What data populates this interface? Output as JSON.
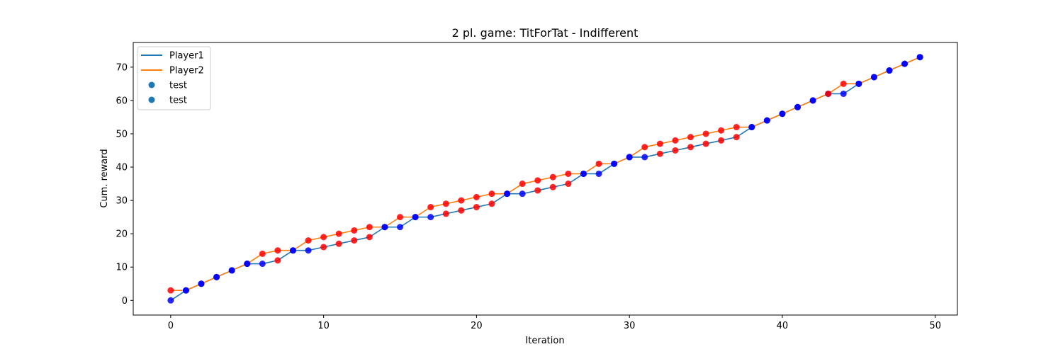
{
  "chart_data": {
    "type": "line",
    "title": "2 pl. game: TitForTat - Indifferent",
    "xlabel": "Iteration",
    "ylabel": "Cum. reward",
    "xlim": [
      -2.45,
      51.45
    ],
    "ylim": [
      -4.4,
      77.4
    ],
    "xticks": [
      0,
      10,
      20,
      30,
      40,
      50
    ],
    "yticks": [
      0,
      10,
      20,
      30,
      40,
      50,
      60,
      70
    ],
    "x": [
      0,
      1,
      2,
      3,
      4,
      5,
      6,
      7,
      8,
      9,
      10,
      11,
      12,
      13,
      14,
      15,
      16,
      17,
      18,
      19,
      20,
      21,
      22,
      23,
      24,
      25,
      26,
      27,
      28,
      29,
      30,
      31,
      32,
      33,
      34,
      35,
      36,
      37,
      38,
      39,
      40,
      41,
      42,
      43,
      44,
      45,
      46,
      47,
      48,
      49
    ],
    "series": [
      {
        "name": "Player1",
        "kind": "line",
        "color": "#1f77b4",
        "values": [
          0,
          3,
          5,
          7,
          9,
          11,
          11,
          12,
          15,
          15,
          16,
          17,
          18,
          19,
          22,
          22,
          25,
          25,
          26,
          27,
          28,
          29,
          32,
          32,
          33,
          34,
          35,
          38,
          38,
          41,
          43,
          43,
          44,
          45,
          46,
          47,
          48,
          49,
          52,
          54,
          56,
          58,
          60,
          62,
          62,
          65,
          67,
          69,
          71,
          73
        ]
      },
      {
        "name": "Player2",
        "kind": "line",
        "color": "#ff7f0e",
        "values": [
          3,
          3,
          5,
          7,
          9,
          11,
          14,
          15,
          15,
          18,
          19,
          20,
          21,
          22,
          22,
          25,
          25,
          28,
          29,
          30,
          31,
          32,
          32,
          35,
          36,
          37,
          38,
          38,
          41,
          41,
          43,
          46,
          47,
          48,
          49,
          50,
          51,
          52,
          52,
          54,
          56,
          58,
          60,
          62,
          65,
          65,
          67,
          69,
          71,
          73
        ]
      },
      {
        "name": "test",
        "kind": "scatter",
        "target": "Player1",
        "legend_color": "#1f77b4",
        "point_colors": [
          "#0000ff",
          "#0000ff",
          "#0000ff",
          "#0000ff",
          "#0000ff",
          "#0000ff",
          "#0000ff",
          "#ff0000",
          "#0000ff",
          "#0000ff",
          "#ff0000",
          "#ff0000",
          "#ff0000",
          "#ff0000",
          "#0000ff",
          "#0000ff",
          "#0000ff",
          "#0000ff",
          "#ff0000",
          "#ff0000",
          "#ff0000",
          "#ff0000",
          "#0000ff",
          "#0000ff",
          "#ff0000",
          "#ff0000",
          "#ff0000",
          "#0000ff",
          "#0000ff",
          "#0000ff",
          "#0000ff",
          "#0000ff",
          "#ff0000",
          "#ff0000",
          "#ff0000",
          "#ff0000",
          "#ff0000",
          "#ff0000",
          "#0000ff",
          "#0000ff",
          "#0000ff",
          "#0000ff",
          "#0000ff",
          "#0000ff",
          "#0000ff",
          "#0000ff",
          "#0000ff",
          "#0000ff",
          "#0000ff",
          "#0000ff"
        ]
      },
      {
        "name": "test",
        "kind": "scatter",
        "target": "Player2",
        "legend_color": "#1f77b4",
        "point_colors": [
          "#ff0000",
          "#0000ff",
          "#0000ff",
          "#0000ff",
          "#0000ff",
          "#0000ff",
          "#ff0000",
          "#ff0000",
          "#0000ff",
          "#ff0000",
          "#ff0000",
          "#ff0000",
          "#ff0000",
          "#ff0000",
          "#0000ff",
          "#ff0000",
          "#0000ff",
          "#ff0000",
          "#ff0000",
          "#ff0000",
          "#ff0000",
          "#ff0000",
          "#0000ff",
          "#ff0000",
          "#ff0000",
          "#ff0000",
          "#ff0000",
          "#0000ff",
          "#ff0000",
          "#0000ff",
          "#0000ff",
          "#ff0000",
          "#ff0000",
          "#ff0000",
          "#ff0000",
          "#ff0000",
          "#ff0000",
          "#ff0000",
          "#0000ff",
          "#0000ff",
          "#0000ff",
          "#0000ff",
          "#0000ff",
          "#ff0000",
          "#ff0000",
          "#0000ff",
          "#0000ff",
          "#0000ff",
          "#0000ff",
          "#0000ff"
        ]
      }
    ],
    "legend": {
      "position": "upper-left"
    },
    "grid": false
  }
}
